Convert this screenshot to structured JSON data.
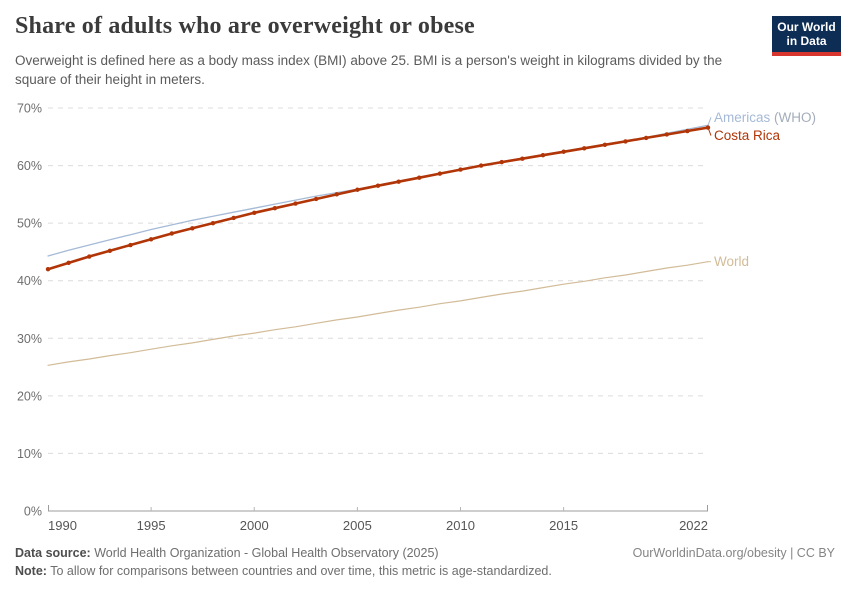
{
  "header": {
    "title": "Share of adults who are overweight or obese",
    "subtitle": "Overweight is defined here as a body mass index (BMI) above 25. BMI is a person's weight in kilograms divided by the square of their height in meters.",
    "logo_line1": "Our World",
    "logo_line2": "in Data",
    "logo_bg": "#0d2d54",
    "logo_stripe": "#d8352e"
  },
  "chart_data": {
    "type": "line",
    "title": "Share of adults who are overweight or obese",
    "xlabel": "",
    "ylabel": "",
    "ylim": [
      0,
      70
    ],
    "yticks": [
      0,
      10,
      20,
      30,
      40,
      50,
      60,
      70
    ],
    "ytick_suffix": "%",
    "xticks": [
      1990,
      1995,
      2000,
      2005,
      2010,
      2015,
      2022
    ],
    "grid": "horizontal-dashed",
    "legend_position": "right-of-line-ends",
    "x": [
      1990,
      1991,
      1992,
      1993,
      1994,
      1995,
      1996,
      1997,
      1998,
      1999,
      2000,
      2001,
      2002,
      2003,
      2004,
      2005,
      2006,
      2007,
      2008,
      2009,
      2010,
      2011,
      2012,
      2013,
      2014,
      2015,
      2016,
      2017,
      2018,
      2019,
      2020,
      2021,
      2022
    ],
    "series": [
      {
        "name": "Americas",
        "name_suffix": " (WHO)",
        "color": "#a5bad6",
        "suffix_color": "#a4adba",
        "markers": false,
        "line_width": 1.3,
        "label_dy": -8,
        "values": [
          44.3,
          45.3,
          46.2,
          47.1,
          48.0,
          48.9,
          49.7,
          50.5,
          51.2,
          51.9,
          52.6,
          53.3,
          54.0,
          54.7,
          55.3,
          55.9,
          56.6,
          57.3,
          57.9,
          58.6,
          59.3,
          60.0,
          60.7,
          61.3,
          61.9,
          62.5,
          63.1,
          63.7,
          64.3,
          64.9,
          65.6,
          66.3,
          67.0
        ]
      },
      {
        "name": "Costa Rica",
        "name_suffix": "",
        "color": "#b13507",
        "suffix_color": "#b13507",
        "markers": true,
        "line_width": 2.6,
        "label_dy": 8,
        "values": [
          42.0,
          43.1,
          44.2,
          45.2,
          46.2,
          47.2,
          48.2,
          49.1,
          50.0,
          50.9,
          51.8,
          52.6,
          53.4,
          54.2,
          55.0,
          55.8,
          56.5,
          57.2,
          57.9,
          58.6,
          59.3,
          60.0,
          60.6,
          61.2,
          61.8,
          62.4,
          63.0,
          63.6,
          64.2,
          64.8,
          65.4,
          66.0,
          66.6
        ]
      },
      {
        "name": "World",
        "name_suffix": "",
        "color": "#d2bc98",
        "suffix_color": "#d2bc98",
        "markers": false,
        "line_width": 1.2,
        "label_dy": 0,
        "values": [
          25.3,
          25.9,
          26.4,
          27.0,
          27.5,
          28.1,
          28.7,
          29.2,
          29.8,
          30.4,
          30.9,
          31.5,
          32.0,
          32.6,
          33.2,
          33.7,
          34.3,
          34.9,
          35.4,
          36.0,
          36.5,
          37.1,
          37.7,
          38.2,
          38.8,
          39.4,
          39.9,
          40.5,
          41.0,
          41.6,
          42.2,
          42.7,
          43.3
        ]
      }
    ]
  },
  "footer": {
    "source_label": "Data source:",
    "source_text": " World Health Organization - Global Health Observatory (2025)",
    "note_label": "Note:",
    "note_text": " To allow for comparisons between countries and over time, this metric is age-standardized.",
    "link_text": "OurWorldinData.org/obesity | CC BY"
  }
}
